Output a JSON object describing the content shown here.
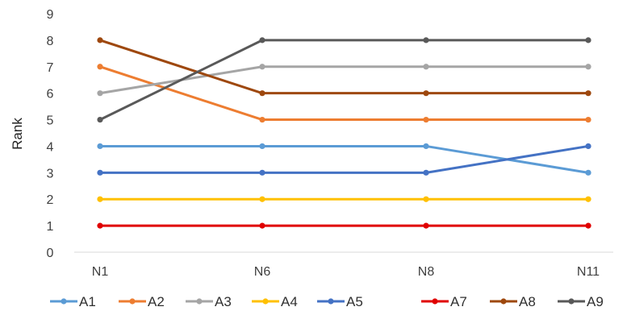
{
  "chart_data": {
    "type": "line",
    "title": "",
    "xlabel": "",
    "ylabel": "Rank",
    "categories": [
      "N1",
      "N6",
      "N8",
      "N11"
    ],
    "yticks": [
      "0",
      "1",
      "2",
      "3",
      "4",
      "5",
      "6",
      "7",
      "8",
      "9"
    ],
    "ylim": [
      0,
      9
    ],
    "grid": false,
    "legend_position": "bottom",
    "series": [
      {
        "name": "A1",
        "color": "#5b9bd5",
        "values": [
          4,
          4,
          4,
          3
        ]
      },
      {
        "name": "A2",
        "color": "#ed7d31",
        "values": [
          7,
          5,
          5,
          5
        ]
      },
      {
        "name": "A3",
        "color": "#a5a5a5",
        "values": [
          6,
          7,
          7,
          7
        ]
      },
      {
        "name": "A4",
        "color": "#ffc000",
        "values": [
          2,
          2,
          2,
          2
        ]
      },
      {
        "name": "A5",
        "color": "#4472c4",
        "values": [
          3,
          3,
          3,
          4
        ]
      },
      {
        "name": "A7",
        "color": "#e00000",
        "values": [
          1,
          1,
          1,
          1
        ]
      },
      {
        "name": "A8",
        "color": "#9e480e",
        "values": [
          8,
          6,
          6,
          6
        ]
      },
      {
        "name": "A9",
        "color": "#595959",
        "values": [
          5,
          8,
          8,
          8
        ]
      }
    ]
  }
}
